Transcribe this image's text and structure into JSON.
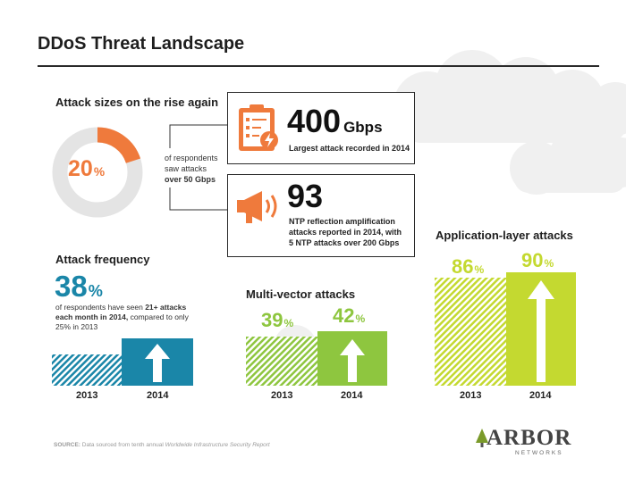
{
  "title": "DDoS Threat Landscape",
  "colors": {
    "orange": "#ef7a3c",
    "teal": "#1a86a8",
    "green_mid": "#8ec63f",
    "green_light": "#c4d930",
    "gray": "#e4e4e4",
    "cloud": "#f0f0f0"
  },
  "attack_sizes": {
    "heading": "Attack sizes on the rise again",
    "donut_value": "20",
    "donut_unit": "%",
    "donut_fraction": 0.2,
    "donut_caption_1": "of respondents",
    "donut_caption_2": "saw attacks",
    "donut_caption_3": "over 50 Gbps",
    "largest": {
      "icon": "clipboard-lightning-icon",
      "value": "400",
      "unit": "Gbps",
      "caption": "Largest attack recorded in 2014"
    },
    "ntp": {
      "icon": "megaphone-icon",
      "value": "93",
      "caption_1": "NTP reflection amplification",
      "caption_2": "attacks reported in 2014, with",
      "caption_3": "5 NTP attacks over 200 Gbps"
    }
  },
  "frequency": {
    "heading": "Attack frequency",
    "value": "38",
    "unit": "%",
    "caption_a": "of respondents have seen ",
    "caption_b": "21+ attacks",
    "caption_c": "each month in 2014,",
    "caption_d": " compared to only",
    "caption_e": "25% in 2013",
    "prev_fraction": 0.25,
    "curr_fraction": 0.38,
    "year_prev": "2013",
    "year_curr": "2014"
  },
  "multivector": {
    "heading": "Multi-vector attacks",
    "value_prev": "39",
    "value_curr": "42",
    "unit": "%",
    "year_prev": "2013",
    "year_curr": "2014"
  },
  "application": {
    "heading": "Application-layer attacks",
    "value_prev": "86",
    "value_curr": "90",
    "unit": "%",
    "year_prev": "2013",
    "year_curr": "2014"
  },
  "footer": {
    "source_label": "SOURCE:",
    "source_text": " Data sourced from tenth annual ",
    "source_report": "Worldwide Infrastructure Security Report"
  },
  "logo": {
    "name": "ARBOR",
    "tagline": "NETWORKS"
  }
}
